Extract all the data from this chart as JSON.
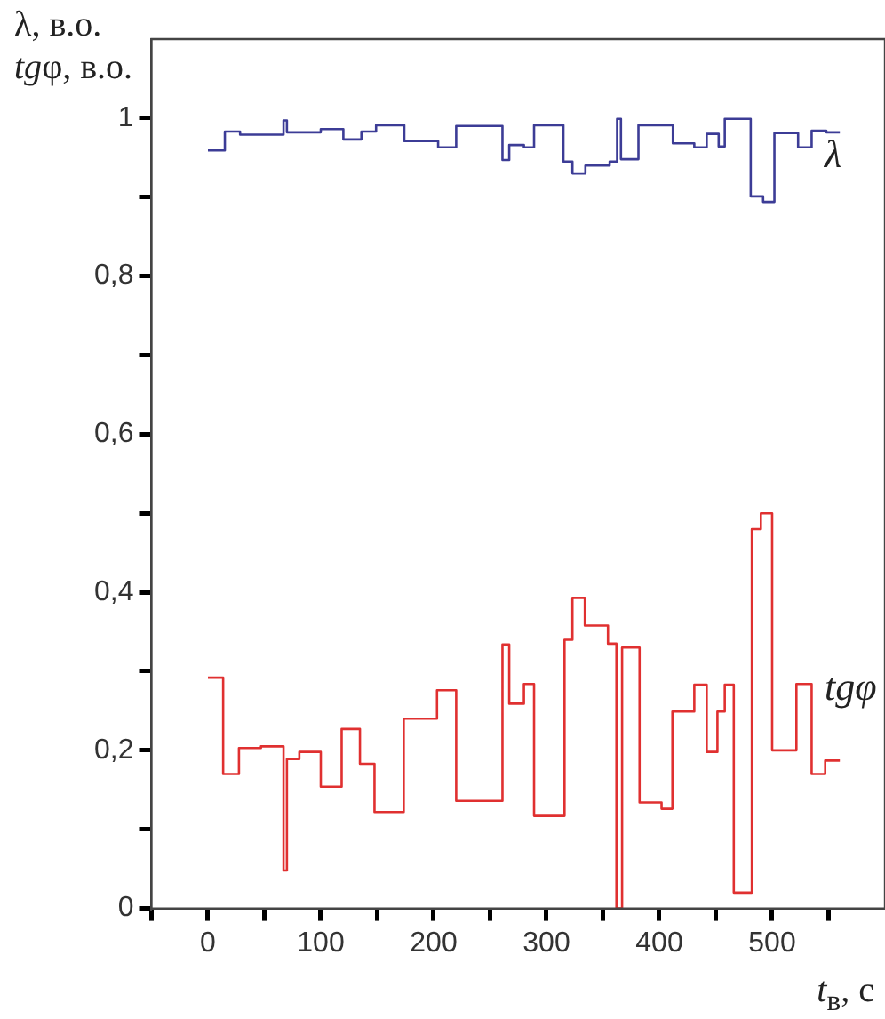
{
  "chart_data": {
    "type": "step",
    "xlabel": "t$_{в}$, с",
    "ylabel": "λ, в.о.\ntgφ, в.о.",
    "grid": false,
    "legend": false,
    "marker": "none",
    "line_style": "solid",
    "xlim": [
      -50,
      600
    ],
    "xticks": [
      {
        "value": -50,
        "label": null
      },
      0,
      {
        "value": 50,
        "label": null
      },
      100,
      {
        "value": 150,
        "label": null
      },
      200,
      {
        "value": 250,
        "label": null
      },
      300,
      {
        "value": 350,
        "label": null
      },
      400,
      {
        "value": 450,
        "label": null
      },
      500,
      {
        "value": 550,
        "label": null
      }
    ],
    "ylim": [
      0,
      1.1
    ],
    "yticks": [
      {
        "value": 0,
        "label": "0"
      },
      {
        "value": 0.1,
        "label": null
      },
      {
        "value": 0.2,
        "label": "0,2"
      },
      {
        "value": 0.3,
        "label": null
      },
      {
        "value": 0.4,
        "label": "0,4"
      },
      {
        "value": 0.5,
        "label": null
      },
      {
        "value": 0.6,
        "label": "0,6"
      },
      {
        "value": 0.7,
        "label": null
      },
      {
        "value": 0.8,
        "label": "0,8"
      },
      {
        "value": 0.9,
        "label": null
      },
      {
        "value": 1,
        "label": "1"
      }
    ],
    "series": [
      {
        "name": "λ",
        "color": "#3c3c96",
        "x": [
          0,
          15,
          28.5,
          67,
          70,
          100,
          120,
          136,
          149,
          174,
          204,
          220,
          261,
          267,
          280,
          289,
          315,
          323,
          334.5,
          356,
          362.6,
          366,
          381.5,
          412,
          431,
          442,
          452.6,
          458,
          481,
          492,
          502,
          523,
          535,
          548,
          560
        ],
        "values": [
          0.959,
          0.983,
          0.979,
          0.997,
          0.982,
          0.986,
          0.973,
          0.983,
          0.991,
          0.971,
          0.963,
          0.99,
          0.947,
          0.966,
          0.963,
          0.991,
          0.945,
          0.93,
          0.94,
          0.945,
          0.999,
          0.948,
          0.991,
          0.968,
          0.963,
          0.98,
          0.964,
          0.999,
          0.901,
          0.894,
          0.981,
          0.963,
          0.984,
          0.982,
          0.982
        ]
      },
      {
        "name": "tgφ",
        "color": "#e03030",
        "x": [
          0,
          13.5,
          27.5,
          47,
          67,
          70,
          81,
          100,
          118.5,
          134.7,
          147.6,
          173.5,
          203,
          220,
          261,
          267,
          280,
          289,
          316,
          323,
          334,
          354.5,
          362,
          367,
          382.5,
          402,
          411.6,
          431,
          442,
          451.5,
          458,
          466,
          482,
          490,
          500,
          521.5,
          535,
          547,
          560
        ],
        "values": [
          0.292,
          0.17,
          0.203,
          0.205,
          0.048,
          0.189,
          0.198,
          0.154,
          0.227,
          0.183,
          0.122,
          0.24,
          0.276,
          0.136,
          0.334,
          0.259,
          0.284,
          0.117,
          0.34,
          0.393,
          0.358,
          0.335,
          0,
          0.33,
          0.134,
          0.126,
          0.249,
          0.283,
          0.198,
          0.249,
          0.283,
          0.02,
          0.48,
          0.5,
          0.2,
          0.284,
          0.17,
          0.187,
          0.187
        ]
      }
    ]
  }
}
